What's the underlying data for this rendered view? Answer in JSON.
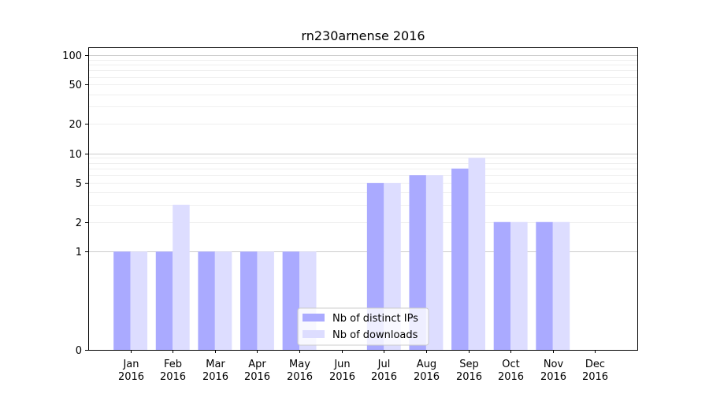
{
  "chart_data": {
    "type": "bar",
    "title": "rn230arnense 2016",
    "categories": [
      "Jan",
      "Feb",
      "Mar",
      "Apr",
      "May",
      "Jun",
      "Jul",
      "Aug",
      "Sep",
      "Oct",
      "Nov",
      "Dec"
    ],
    "category_year": "2016",
    "y_scale": "symlog",
    "y_ticks": [
      0,
      1,
      2,
      5,
      10,
      20,
      50,
      100
    ],
    "ylim": [
      0,
      120
    ],
    "grid": true,
    "legend_position": "bottom-center",
    "series": [
      {
        "name": "Nb of distinct IPs",
        "color": "#aaaaff",
        "values": [
          1,
          1,
          1,
          1,
          1,
          0,
          5,
          6,
          7,
          2,
          2,
          0
        ]
      },
      {
        "name": "Nb of downloads",
        "color": "#ddddff",
        "values": [
          1,
          3,
          1,
          1,
          1,
          0,
          5,
          6,
          9,
          2,
          2,
          0
        ]
      }
    ]
  }
}
